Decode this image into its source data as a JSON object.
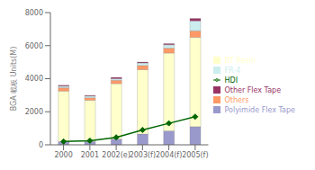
{
  "chart_data": {
    "type": "bar",
    "stacked": true,
    "categories": [
      "2000",
      "2001",
      "2002(e)",
      "2003(f)",
      "2004(f)",
      "2005(f)"
    ],
    "series": [
      {
        "name": "Polyimide Flex Tape",
        "color": "#9999cc",
        "values": [
          200,
          200,
          350,
          650,
          850,
          1100
        ]
      },
      {
        "name": "BT Resin",
        "color": "#ffffcc",
        "values": [
          3050,
          2500,
          3350,
          3900,
          4700,
          5400
        ]
      },
      {
        "name": "Others",
        "color": "#ff9966",
        "values": [
          200,
          150,
          200,
          250,
          300,
          400
        ]
      },
      {
        "name": "FR-4",
        "color": "#cceeee",
        "values": [
          100,
          100,
          100,
          150,
          200,
          600
        ]
      },
      {
        "name": "Other Flex Tape",
        "color": "#993366",
        "values": [
          50,
          50,
          80,
          60,
          70,
          150
        ]
      },
      {
        "name": "HDI",
        "type": "line",
        "color": "#006600",
        "marker": "diamond",
        "values": [
          200,
          250,
          450,
          900,
          1300,
          1700
        ]
      }
    ],
    "ylabel": "BGA 載板 Units(M)",
    "ylim": [
      0,
      8000
    ],
    "yticks": [
      0,
      2000,
      4000,
      6000,
      8000
    ],
    "grid": false,
    "legend": "right"
  }
}
